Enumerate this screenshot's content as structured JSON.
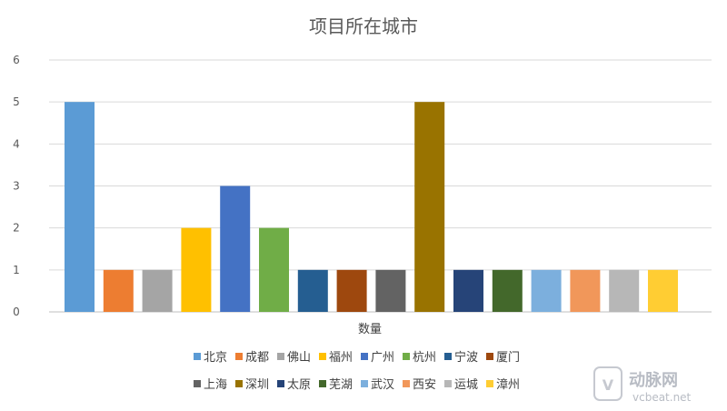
{
  "chart_data": {
    "type": "bar",
    "title": "项目所在城市",
    "xlabel": "数量",
    "ylabel": "",
    "ylim": [
      0,
      6
    ],
    "yticks": [
      0,
      1,
      2,
      3,
      4,
      5,
      6
    ],
    "grid": true,
    "legend_position": "bottom",
    "categories": [
      "数量"
    ],
    "series": [
      {
        "name": "北京",
        "values": [
          5
        ],
        "color": "#5b9bd5"
      },
      {
        "name": "成都",
        "values": [
          1
        ],
        "color": "#ed7d31"
      },
      {
        "name": "佛山",
        "values": [
          1
        ],
        "color": "#a5a5a5"
      },
      {
        "name": "福州",
        "values": [
          2
        ],
        "color": "#ffc000"
      },
      {
        "name": "广州",
        "values": [
          3
        ],
        "color": "#4472c4"
      },
      {
        "name": "杭州",
        "values": [
          2
        ],
        "color": "#70ad47"
      },
      {
        "name": "宁波",
        "values": [
          1
        ],
        "color": "#255e91"
      },
      {
        "name": "厦门",
        "values": [
          1
        ],
        "color": "#9e480e"
      },
      {
        "name": "上海",
        "values": [
          1
        ],
        "color": "#636363"
      },
      {
        "name": "深圳",
        "values": [
          5
        ],
        "color": "#997300"
      },
      {
        "name": "太原",
        "values": [
          1
        ],
        "color": "#264478"
      },
      {
        "name": "芜湖",
        "values": [
          1
        ],
        "color": "#43682b"
      },
      {
        "name": "武汉",
        "values": [
          1
        ],
        "color": "#7cafdd"
      },
      {
        "name": "西安",
        "values": [
          1
        ],
        "color": "#f1975a"
      },
      {
        "name": "运城",
        "values": [
          1
        ],
        "color": "#b7b7b7"
      },
      {
        "name": "漳州",
        "values": [
          1
        ],
        "color": "#ffcd33"
      }
    ]
  },
  "watermark": {
    "logo_text": "动脉网",
    "sub_text": "vcbeat.net"
  }
}
